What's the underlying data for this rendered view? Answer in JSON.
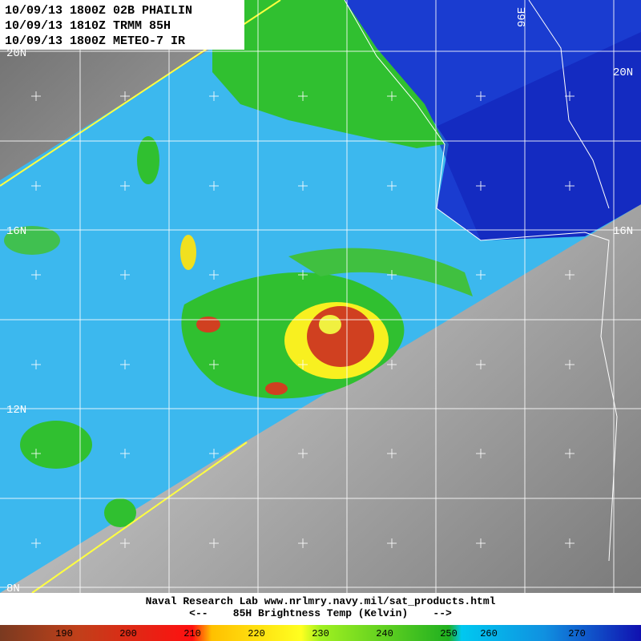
{
  "header": {
    "lines": [
      "10/09/13 1800Z 02B PHAILIN",
      "10/09/13 1810Z TRMM 85H",
      "10/09/13 1800Z METEO-7 IR"
    ]
  },
  "map": {
    "lat_labels_left": [
      "20N",
      "16N",
      "12N",
      "8N"
    ],
    "lat_labels_right": [
      "20N",
      "16N"
    ],
    "lon_labels": [
      "96E"
    ]
  },
  "footer": {
    "credit": "Naval Research Lab  www.nrlmry.navy.mil/sat_products.html",
    "legend_title": "<--    85H Brightness Temp (Kelvin)    -->"
  },
  "colorbar": {
    "labels": [
      "190",
      "200",
      "210",
      "220",
      "230",
      "240",
      "250",
      "260",
      "270"
    ]
  }
}
